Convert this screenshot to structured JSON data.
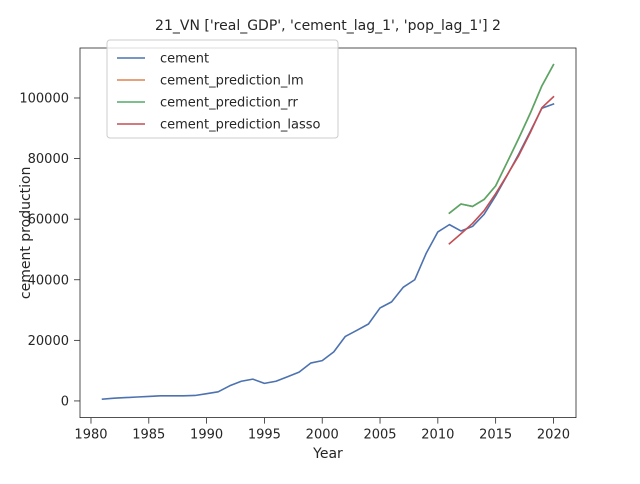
{
  "chart_data": {
    "type": "line",
    "title": "21_VN ['real_GDP', 'cement_lag_1', 'pop_lag_1'] 2",
    "xlabel": "Year",
    "ylabel": "cement production",
    "xlim": [
      1979.05,
      2021.95
    ],
    "ylim": [
      -5500,
      116500
    ],
    "x_ticks": [
      1980,
      1985,
      1990,
      1995,
      2000,
      2005,
      2010,
      2015,
      2020
    ],
    "y_ticks": [
      0,
      20000,
      40000,
      60000,
      80000,
      100000
    ],
    "x_tick_labels": [
      "1980",
      "1985",
      "1990",
      "1995",
      "2000",
      "2005",
      "2010",
      "2015",
      "2020"
    ],
    "y_tick_labels": [
      "0",
      "20000",
      "40000",
      "60000",
      "80000",
      "100000"
    ],
    "grid": false,
    "legend_position": "upper-left",
    "series": [
      {
        "name": "cement",
        "color": "#4c72b0",
        "x": [
          1981,
          1982,
          1983,
          1984,
          1985,
          1986,
          1987,
          1988,
          1989,
          1990,
          1991,
          1992,
          1993,
          1994,
          1995,
          1996,
          1997,
          1998,
          1999,
          2000,
          2001,
          2002,
          2003,
          2004,
          2005,
          2006,
          2007,
          2008,
          2009,
          2010,
          2011,
          2012,
          2013,
          2014,
          2015,
          2016,
          2017,
          2018,
          2019,
          2020
        ],
        "y": [
          600,
          900,
          1100,
          1300,
          1500,
          1700,
          1700,
          1700,
          1800,
          2400,
          3000,
          5000,
          6500,
          7200,
          5800,
          6500,
          8000,
          9500,
          12500,
          13300,
          16200,
          21300,
          23300,
          25400,
          30700,
          32700,
          37500,
          40000,
          48800,
          55800,
          58200,
          56100,
          57600,
          61600,
          67700,
          74500,
          81500,
          89000,
          96600,
          98000
        ]
      },
      {
        "name": "cement_prediction_lm",
        "color": "#dd8452",
        "x": [
          2011,
          2012,
          2013,
          2014,
          2015,
          2016,
          2017,
          2018,
          2019,
          2020
        ],
        "y": [
          62000,
          65000,
          64200,
          66500,
          71000,
          78800,
          86700,
          95000,
          104000,
          111000
        ]
      },
      {
        "name": "cement_prediction_rr",
        "color": "#55a868",
        "x": [
          2011,
          2012,
          2013,
          2014,
          2015,
          2016,
          2017,
          2018,
          2019,
          2020
        ],
        "y": [
          62000,
          65000,
          64200,
          66500,
          71000,
          78800,
          86700,
          95000,
          104000,
          111000
        ]
      },
      {
        "name": "cement_prediction_lasso",
        "color": "#c44e52",
        "x": [
          2011,
          2012,
          2013,
          2014,
          2015,
          2016,
          2017,
          2018,
          2019,
          2020
        ],
        "y": [
          51900,
          55200,
          58600,
          62800,
          68400,
          74600,
          81000,
          88600,
          96800,
          100400
        ]
      }
    ]
  }
}
